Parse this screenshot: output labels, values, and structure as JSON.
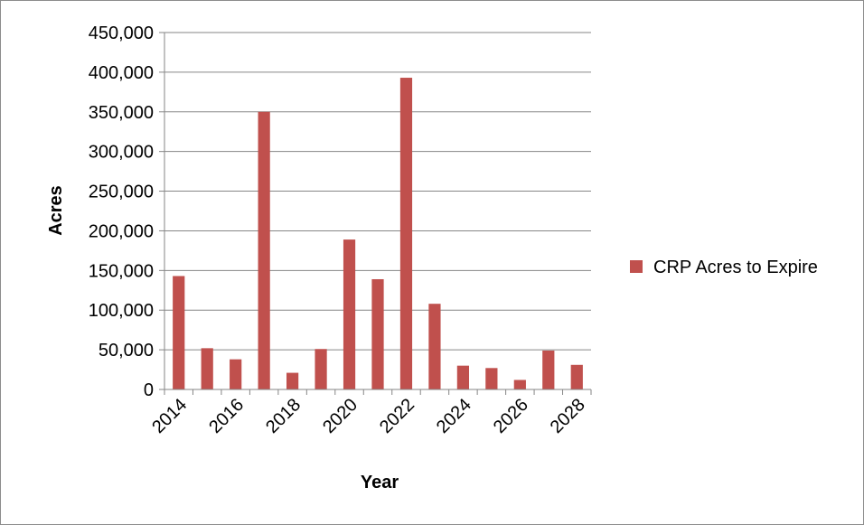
{
  "chart_data": {
    "type": "bar",
    "categories": [
      "2014",
      "2015",
      "2016",
      "2017",
      "2018",
      "2019",
      "2020",
      "2021",
      "2022",
      "2023",
      "2024",
      "2025",
      "2026",
      "2027",
      "2028"
    ],
    "x_tick_labels_shown": [
      "2014",
      "2016",
      "2018",
      "2020",
      "2022",
      "2024",
      "2026",
      "2028"
    ],
    "series": [
      {
        "name": "CRP Acres to Expire",
        "values": [
          143000,
          52000,
          38000,
          350000,
          21000,
          51000,
          189000,
          139000,
          393000,
          108000,
          30000,
          27000,
          12000,
          49000,
          31000
        ],
        "color": "#c0504d"
      }
    ],
    "title": "",
    "xlabel": "Year",
    "ylabel": "Acres",
    "ylim": [
      0,
      450000
    ],
    "yticks": [
      0,
      50000,
      100000,
      150000,
      200000,
      250000,
      300000,
      350000,
      400000,
      450000
    ],
    "ytick_labels": [
      "0",
      "50,000",
      "100,000",
      "150,000",
      "200,000",
      "250,000",
      "300,000",
      "350,000",
      "400,000",
      "450,000"
    ],
    "grid": "horizontal",
    "legend_position": "right",
    "colors": {
      "gridline": "#868686",
      "bar": "#c0504d"
    }
  }
}
